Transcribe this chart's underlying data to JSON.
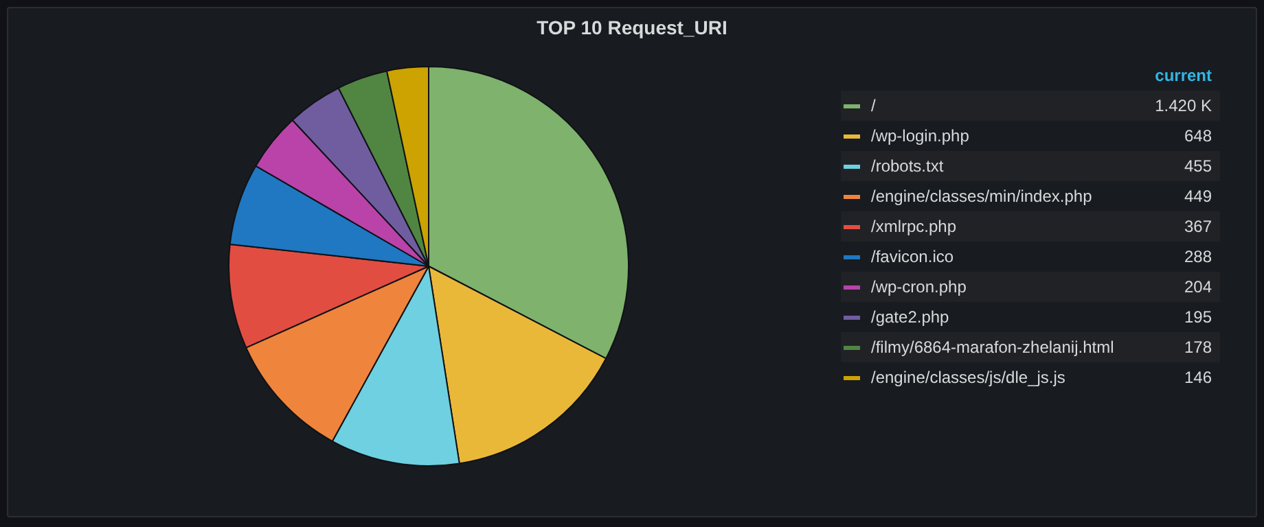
{
  "chart_data": {
    "type": "pie",
    "title": "TOP 10 Request_URI",
    "legend_title": "current",
    "legend": "right",
    "categories": [
      "/",
      "/wp-login.php",
      "/robots.txt",
      "/engine/classes/min/index.php",
      "/xmlrpc.php",
      "/favicon.ico",
      "/wp-cron.php",
      "/gate2.php",
      "/filmy/6864-marafon-zhelanij.html",
      "/engine/classes/js/dle_js.js"
    ],
    "values": [
      1420,
      648,
      455,
      449,
      367,
      288,
      204,
      195,
      178,
      146
    ],
    "value_labels": [
      "1.420 K",
      "648",
      "455",
      "449",
      "367",
      "288",
      "204",
      "195",
      "178",
      "146"
    ],
    "colors": [
      "#7eb26d",
      "#eab839",
      "#6ed0e0",
      "#ef843c",
      "#e24d42",
      "#1f78c1",
      "#ba43a9",
      "#705da0",
      "#508642",
      "#cca300"
    ]
  }
}
